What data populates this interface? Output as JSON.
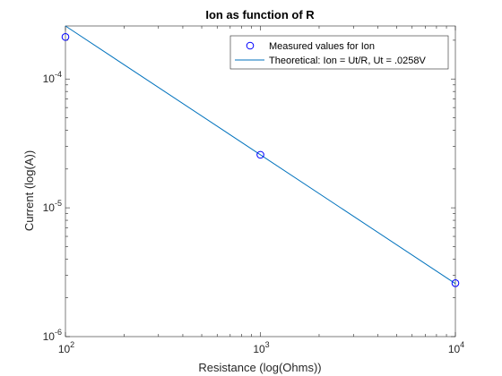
{
  "chart_data": {
    "type": "scatter",
    "title": "Ion as function of R",
    "xlabel": "Resistance (log(Ohms))",
    "ylabel": "Current (log(A))",
    "xscale": "log",
    "yscale": "log",
    "xlim": [
      100,
      10000
    ],
    "ylim": [
      1e-06,
      0.000258
    ],
    "grid": false,
    "legend_position": "top-right",
    "x_ticks": [
      {
        "value": 100,
        "base": "10",
        "exp": "2"
      },
      {
        "value": 1000,
        "base": "10",
        "exp": "3"
      },
      {
        "value": 10000,
        "base": "10",
        "exp": "4"
      }
    ],
    "y_ticks": [
      {
        "value": 1e-06,
        "base": "10",
        "exp": "-6"
      },
      {
        "value": 1e-05,
        "base": "10",
        "exp": "-5"
      },
      {
        "value": 0.0001,
        "base": "10",
        "exp": "-4"
      }
    ],
    "series": [
      {
        "name": "Measured values for Ion",
        "kind": "markers",
        "marker": "circle",
        "color": "#0000ff",
        "x": [
          100,
          1000,
          10000
        ],
        "y": [
          0.000212,
          2.58e-05,
          2.6e-06
        ]
      },
      {
        "name": "Theoretical: Ion = Ut/R, Ut = .0258V",
        "kind": "line",
        "color": "#0072bd",
        "x": [
          100,
          10000
        ],
        "y": [
          0.000258,
          2.58e-06
        ]
      }
    ]
  }
}
